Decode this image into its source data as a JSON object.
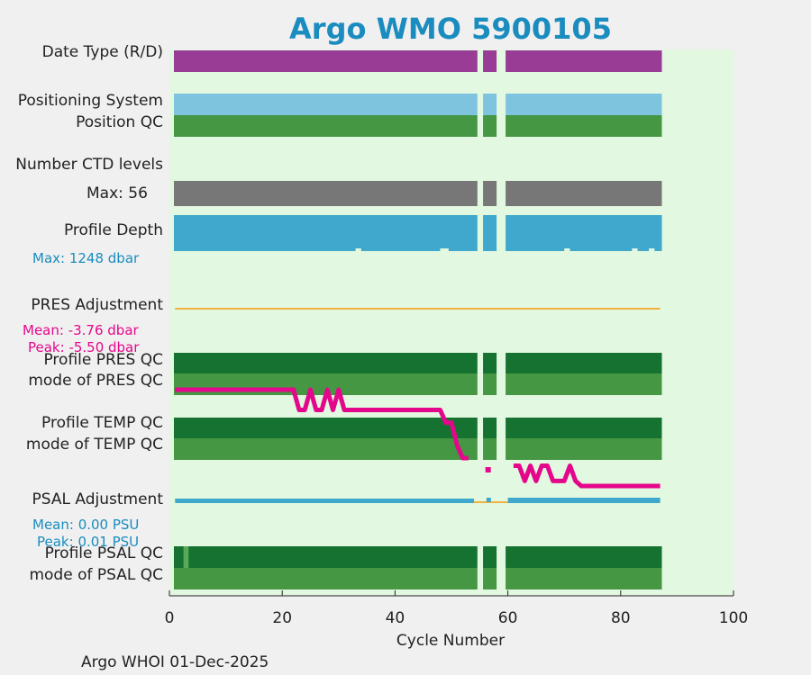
{
  "chart_data": {
    "type": "bar",
    "title": "Argo WMO 5900105",
    "xlabel": "Cycle Number",
    "xlim": [
      0,
      100
    ],
    "xticks": [
      0,
      20,
      40,
      60,
      80,
      100
    ],
    "footer": "Argo WHOI 01-Dec-2025",
    "colors": {
      "background": "#e3f8e0",
      "purple": "#983c96",
      "lightblue": "#7ec4df",
      "green": "#459744",
      "darkgreen": "#157230",
      "gray": "#777777",
      "cyan": "#3fa8cc",
      "orange": "#f2b23f",
      "magenta": "#e5078b",
      "stat_blue": "#1a8cbf"
    },
    "cycle_range": [
      1,
      87
    ],
    "missing_cycles": [
      [
        54.6,
        55.6
      ],
      [
        58.0,
        59.6
      ]
    ],
    "rows": [
      {
        "label": "Date Type (R/D)",
        "color": "purple"
      },
      {
        "label": "Positioning System",
        "color": "lightblue"
      },
      {
        "label": "Position QC",
        "color": "green"
      },
      {
        "label": "Number CTD levels",
        "note": "Max: 56",
        "color": "gray"
      },
      {
        "label": "Profile Depth",
        "note": "Max: 1248 dbar",
        "color": "cyan"
      },
      {
        "label": "PRES Adjustment",
        "stats": [
          "Mean: -3.76 dbar",
          "Peak: -5.50 dbar"
        ],
        "color": "orange"
      },
      {
        "label": "Profile PRES QC",
        "color": "darkgreen"
      },
      {
        "label": "mode of PRES QC",
        "color": "green"
      },
      {
        "label": "Profile TEMP QC",
        "color": "darkgreen"
      },
      {
        "label": "mode of TEMP QC",
        "color": "green"
      },
      {
        "label": "PSAL Adjustment",
        "stats": [
          "Mean: 0.00 PSU",
          "Peak: 0.01 PSU"
        ],
        "color": "cyan"
      },
      {
        "label": "Profile PSAL QC",
        "color": "darkgreen"
      },
      {
        "label": "mode of PSAL QC",
        "color": "green"
      }
    ],
    "pres_adjustment_series": {
      "name": "PRES Adjustment (dbar)",
      "x": [
        1,
        22,
        23,
        24,
        25,
        26,
        27,
        28,
        29,
        30,
        31,
        32,
        48,
        49,
        50,
        51,
        52,
        53,
        56.5,
        61,
        62,
        63,
        64,
        65,
        66,
        67,
        68,
        69,
        70,
        71,
        72,
        73,
        87
      ],
      "y": [
        -2.0,
        -2.0,
        -2.8,
        -2.8,
        -2.0,
        -2.8,
        -2.8,
        -2.0,
        -2.8,
        -2.0,
        -2.8,
        -2.8,
        -2.8,
        -3.3,
        -3.3,
        -4.2,
        -4.7,
        -4.7,
        -5.0,
        -5.0,
        -5.0,
        -5.6,
        -5.0,
        -5.6,
        -5.0,
        -5.0,
        -5.6,
        -5.6,
        -5.6,
        -5.0,
        -5.6,
        -5.8,
        -5.8
      ]
    },
    "psal_adjustment_series": {
      "name": "PSAL Adjustment (PSU)",
      "x": [
        1,
        87
      ],
      "y": [
        0.0,
        0.0
      ]
    }
  }
}
